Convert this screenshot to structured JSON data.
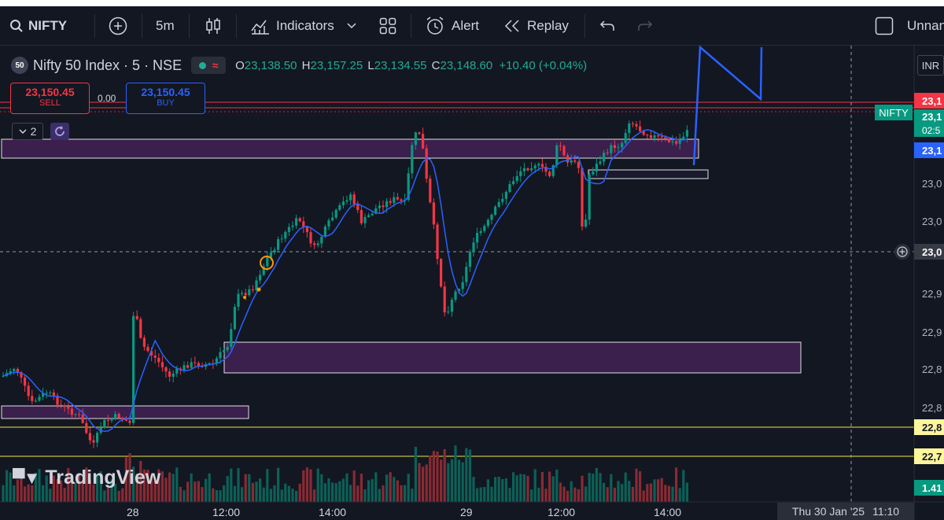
{
  "toolbar": {
    "symbol": "NIFTY",
    "interval": "5m",
    "indicators_label": "Indicators",
    "alert_label": "Alert",
    "replay_label": "Replay",
    "layout_name": "Unnan"
  },
  "legend": {
    "title": "Nifty 50 Index · 5 · NSE",
    "badge": "50",
    "o_label": "O",
    "o_value": "23,138.50",
    "h_label": "H",
    "h_value": "23,157.25",
    "l_label": "L",
    "l_value": "23,134.55",
    "c_label": "C",
    "c_value": "23,148.60",
    "change": "+10.40 (+0.04%)",
    "sell_price": "23,150.45",
    "sell_label": "SELL",
    "spread": "0.00",
    "buy_price": "23,150.45",
    "buy_label": "BUY",
    "indicator_count": "2"
  },
  "price_axis": {
    "currency": "INR",
    "ticks": [
      "23,0",
      "23,0",
      "23,0",
      "22,9",
      "22,9",
      "22,8",
      "22,8",
      "22,7"
    ],
    "red_label": "23,1",
    "green_label_1": "23,1",
    "green_label_2": "02:5",
    "blue_label": "23,1",
    "crosshair_label": "23,0",
    "yellow_label_1": "22,8",
    "yellow_label_2": "22,7",
    "volume_label": "1.41",
    "symbol_tag": "NIFTY"
  },
  "time_axis": {
    "labels": [
      "28",
      "12:00",
      "14:00",
      "29",
      "12:00",
      "14:00"
    ],
    "crosshair_time": "Thu 30 Jan '25",
    "crosshair_clock": "11:10"
  },
  "watermark": "TradingView",
  "colors": {
    "background": "#131722",
    "up": "#089981",
    "down": "#f23645",
    "ma_line": "#2962ff",
    "zone_fill": "#3b1f4d",
    "yellow_line": "#f0e442"
  },
  "chart_data": {
    "type": "candlestick",
    "y_range_approx": [
      22780,
      23160
    ],
    "horizontal_lines": [
      "support",
      "support"
    ],
    "zones": [
      "demand",
      "demand",
      "supply",
      "supply"
    ]
  }
}
